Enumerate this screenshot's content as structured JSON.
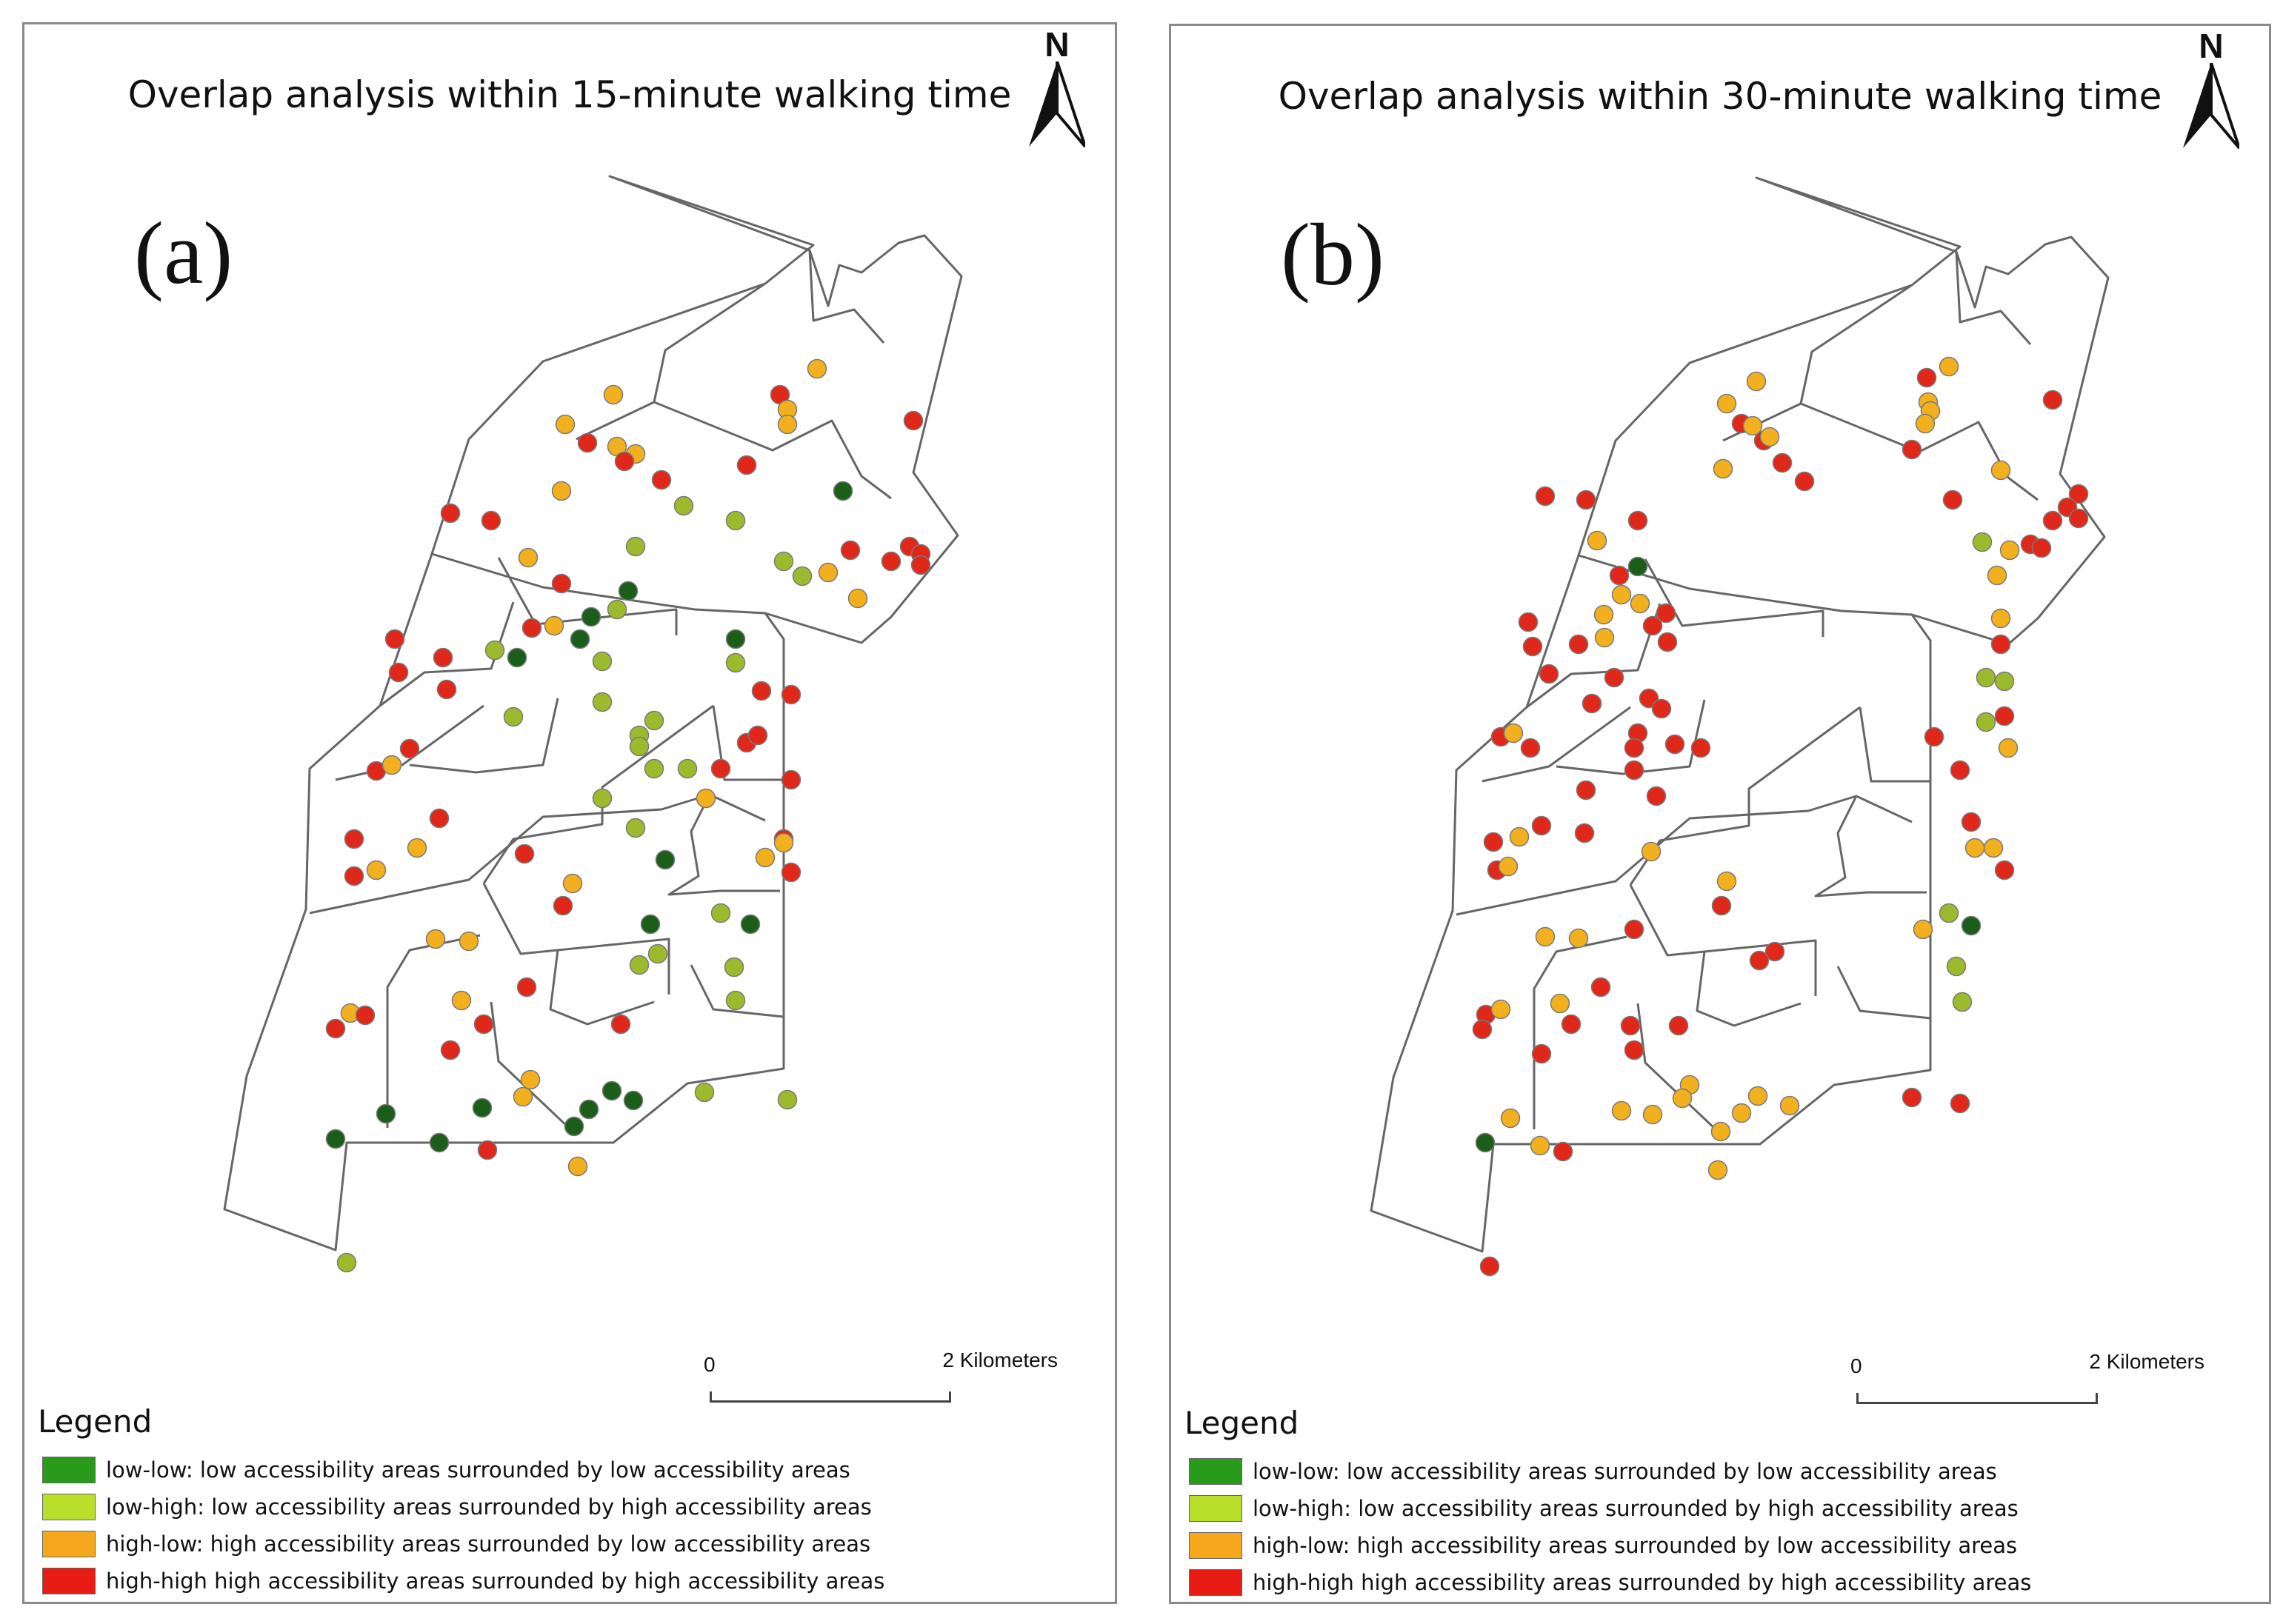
{
  "colors": {
    "low_low": "#1a5e1a",
    "low_high": "#9bbb2d",
    "high_low": "#f2b01e",
    "high_high": "#e0281a",
    "legend_low_low": "#2a9a1a",
    "legend_low_high": "#b8e02a",
    "legend_high_low": "#f5a81c",
    "legend_high_high": "#e81c14",
    "boundary": "#666666"
  },
  "icons": {
    "north_arrow": "north-arrow-icon"
  },
  "panels": [
    {
      "id": "a",
      "title": "Overlap analysis within 15-minute walking time",
      "letter": "(a)",
      "north": "N",
      "scale": {
        "zero": "0",
        "label": "2 Kilometers"
      },
      "legend": {
        "title": "Legend",
        "items": [
          {
            "key": "low_low",
            "label": "low-low: low accessibility areas surrounded by low accessibility areas"
          },
          {
            "key": "low_high",
            "label": "low-high: low accessibility areas surrounded by high accessibility areas"
          },
          {
            "key": "high_low",
            "label": "high-low: high accessibility areas surrounded by low accessibility areas"
          },
          {
            "key": "high_high",
            "label": "high-high high accessibility areas surrounded by high accessibility areas"
          }
        ]
      }
    },
    {
      "id": "b",
      "title": "Overlap analysis within 30-minute walking time",
      "letter": "(b)",
      "north": "N",
      "scale": {
        "zero": "0",
        "label": "2 Kilometers"
      },
      "legend": {
        "title": "Legend",
        "items": [
          {
            "key": "low_low",
            "label": "low-low: low accessibility areas surrounded by low accessibility areas"
          },
          {
            "key": "low_high",
            "label": "low-high: low accessibility areas surrounded by high accessibility areas"
          },
          {
            "key": "high_low",
            "label": "high-low: high accessibility areas surrounded by low accessibility areas"
          },
          {
            "key": "high_high",
            "label": "high-high high accessibility areas surrounded by high accessibility areas"
          }
        ]
      }
    }
  ]
}
